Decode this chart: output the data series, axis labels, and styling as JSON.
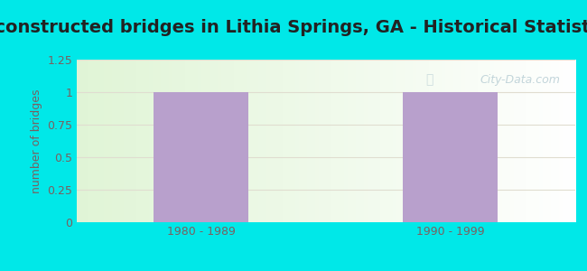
{
  "title": "Reconstructed bridges in Lithia Springs, GA - Historical Statistics",
  "categories": [
    "1980 - 1989",
    "1990 - 1999"
  ],
  "values": [
    1,
    1
  ],
  "bar_color": "#b8a0cc",
  "bar_width": 0.38,
  "ylim": [
    0,
    1.25
  ],
  "yticks": [
    0,
    0.25,
    0.5,
    0.75,
    1,
    1.25
  ],
  "ylabel": "number of bridges",
  "background_color": "#00e8e8",
  "plot_bg_color_topleft": "#e8f5e0",
  "plot_bg_color_topright": "#ffffff",
  "plot_bg_color_bottomleft": "#e8f5e0",
  "plot_bg_color_bottomright": "#ffffff",
  "title_fontsize": 14,
  "title_color": "#222222",
  "axis_label_color": "#7a6060",
  "tick_label_color": "#7a6060",
  "grid_color": "#e0ddd0",
  "watermark": "City-Data.com"
}
